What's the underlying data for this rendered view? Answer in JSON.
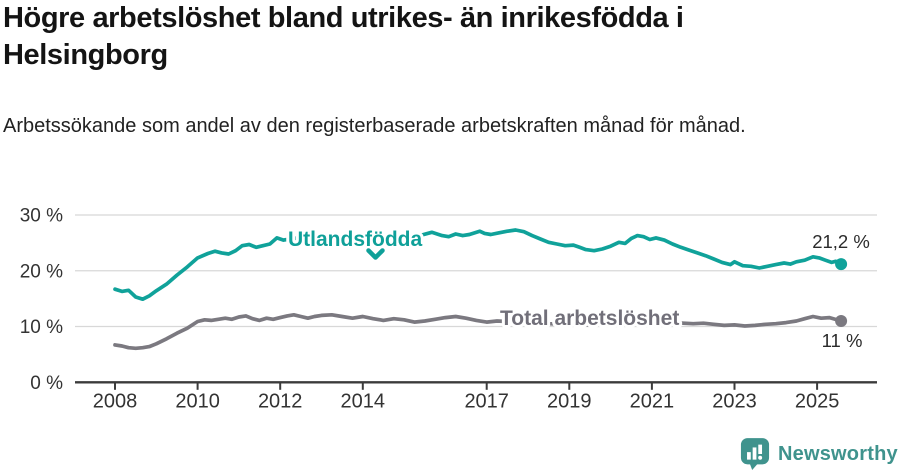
{
  "chart_data": {
    "type": "line",
    "title": "Högre arbetslöshet bland utrikes- än inrikesfödda i Helsingborg",
    "subtitle": "Arbetssökande som andel av den registerbaserade arbetskraften månad för månad.",
    "unit": "%",
    "xlabel": "",
    "ylabel": "",
    "xlim": [
      2007.05,
      2026.4
    ],
    "ylim": [
      0,
      30
    ],
    "grid": true,
    "legend_position": "inline",
    "x_ticks": [
      {
        "label": "2008",
        "year": 2008
      },
      {
        "label": "2010",
        "year": 2010
      },
      {
        "label": "2012",
        "year": 2012
      },
      {
        "label": "2014",
        "year": 2014
      },
      {
        "label": "2017",
        "year": 2017
      },
      {
        "label": "2019",
        "year": 2019
      },
      {
        "label": "2021",
        "year": 2021
      },
      {
        "label": "2023",
        "year": 2023
      },
      {
        "label": "2025",
        "year": 2025
      }
    ],
    "y_ticks": [
      {
        "label": "0 %",
        "value": 0
      },
      {
        "label": "10 %",
        "value": 10
      },
      {
        "label": "20 %",
        "value": 20
      },
      {
        "label": "30 %",
        "value": 30
      }
    ],
    "series": [
      {
        "id": "utlandsfodda",
        "name": "Utlandsfödda",
        "color": "#10a29a",
        "label_color": "#0fa099",
        "end_label": "21,2 %",
        "end_value": 21.2,
        "points": [
          [
            2008.0,
            16.7
          ],
          [
            2008.17,
            16.3
          ],
          [
            2008.33,
            16.5
          ],
          [
            2008.5,
            15.3
          ],
          [
            2008.67,
            14.9
          ],
          [
            2008.83,
            15.5
          ],
          [
            2009.0,
            16.4
          ],
          [
            2009.25,
            17.6
          ],
          [
            2009.5,
            19.2
          ],
          [
            2009.75,
            20.7
          ],
          [
            2010.0,
            22.3
          ],
          [
            2010.25,
            23.1
          ],
          [
            2010.42,
            23.5
          ],
          [
            2010.58,
            23.2
          ],
          [
            2010.75,
            23.0
          ],
          [
            2010.92,
            23.6
          ],
          [
            2011.08,
            24.5
          ],
          [
            2011.25,
            24.7
          ],
          [
            2011.42,
            24.2
          ],
          [
            2011.58,
            24.5
          ],
          [
            2011.75,
            24.8
          ],
          [
            2011.92,
            25.9
          ],
          [
            2012.08,
            25.5
          ],
          [
            2012.25,
            25.7
          ],
          [
            2012.42,
            25.9
          ],
          [
            2012.58,
            25.6
          ],
          [
            2012.75,
            25.8
          ],
          [
            2012.92,
            26.1
          ],
          [
            2013.17,
            25.9
          ],
          [
            2013.42,
            26.1
          ],
          [
            2013.67,
            25.8
          ],
          [
            2013.92,
            25.5
          ],
          [
            2014.17,
            25.0
          ],
          [
            2014.42,
            24.8
          ],
          [
            2014.67,
            25.2
          ],
          [
            2014.92,
            25.6
          ],
          [
            2015.17,
            26.0
          ],
          [
            2015.42,
            26.4
          ],
          [
            2015.67,
            26.9
          ],
          [
            2015.92,
            26.3
          ],
          [
            2016.08,
            26.1
          ],
          [
            2016.25,
            26.6
          ],
          [
            2016.42,
            26.3
          ],
          [
            2016.58,
            26.5
          ],
          [
            2016.83,
            27.1
          ],
          [
            2016.95,
            26.7
          ],
          [
            2017.1,
            26.5
          ],
          [
            2017.3,
            26.8
          ],
          [
            2017.5,
            27.1
          ],
          [
            2017.7,
            27.3
          ],
          [
            2017.9,
            27.0
          ],
          [
            2018.1,
            26.3
          ],
          [
            2018.3,
            25.7
          ],
          [
            2018.5,
            25.1
          ],
          [
            2018.7,
            24.8
          ],
          [
            2018.9,
            24.5
          ],
          [
            2019.1,
            24.6
          ],
          [
            2019.25,
            24.2
          ],
          [
            2019.4,
            23.8
          ],
          [
            2019.6,
            23.6
          ],
          [
            2019.8,
            23.9
          ],
          [
            2020.0,
            24.4
          ],
          [
            2020.2,
            25.1
          ],
          [
            2020.35,
            24.9
          ],
          [
            2020.5,
            25.8
          ],
          [
            2020.65,
            26.3
          ],
          [
            2020.8,
            26.1
          ],
          [
            2020.95,
            25.6
          ],
          [
            2021.1,
            25.9
          ],
          [
            2021.3,
            25.5
          ],
          [
            2021.5,
            24.8
          ],
          [
            2021.7,
            24.2
          ],
          [
            2021.9,
            23.7
          ],
          [
            2022.1,
            23.2
          ],
          [
            2022.3,
            22.7
          ],
          [
            2022.5,
            22.1
          ],
          [
            2022.7,
            21.5
          ],
          [
            2022.9,
            21.1
          ],
          [
            2023.0,
            21.6
          ],
          [
            2023.2,
            20.9
          ],
          [
            2023.4,
            20.8
          ],
          [
            2023.6,
            20.5
          ],
          [
            2023.8,
            20.8
          ],
          [
            2024.0,
            21.1
          ],
          [
            2024.2,
            21.4
          ],
          [
            2024.35,
            21.2
          ],
          [
            2024.5,
            21.6
          ],
          [
            2024.7,
            21.9
          ],
          [
            2024.9,
            22.5
          ],
          [
            2025.05,
            22.3
          ],
          [
            2025.2,
            21.9
          ],
          [
            2025.35,
            21.5
          ],
          [
            2025.45,
            21.7
          ],
          [
            2025.58,
            21.2
          ]
        ]
      },
      {
        "id": "total",
        "name": "Total arbetslöshet",
        "color": "#7b7980",
        "label_color": "#716f79",
        "end_label": "11 %",
        "end_value": 11,
        "points": [
          [
            2008.0,
            6.7
          ],
          [
            2008.17,
            6.5
          ],
          [
            2008.33,
            6.2
          ],
          [
            2008.5,
            6.1
          ],
          [
            2008.67,
            6.2
          ],
          [
            2008.83,
            6.4
          ],
          [
            2009.0,
            6.9
          ],
          [
            2009.25,
            7.8
          ],
          [
            2009.5,
            8.8
          ],
          [
            2009.75,
            9.7
          ],
          [
            2010.0,
            10.9
          ],
          [
            2010.17,
            11.2
          ],
          [
            2010.33,
            11.1
          ],
          [
            2010.5,
            11.3
          ],
          [
            2010.67,
            11.5
          ],
          [
            2010.83,
            11.3
          ],
          [
            2011.0,
            11.7
          ],
          [
            2011.17,
            11.9
          ],
          [
            2011.33,
            11.4
          ],
          [
            2011.5,
            11.1
          ],
          [
            2011.67,
            11.5
          ],
          [
            2011.83,
            11.3
          ],
          [
            2012.0,
            11.6
          ],
          [
            2012.17,
            11.9
          ],
          [
            2012.33,
            12.1
          ],
          [
            2012.5,
            11.8
          ],
          [
            2012.67,
            11.5
          ],
          [
            2012.83,
            11.8
          ],
          [
            2013.0,
            12.0
          ],
          [
            2013.25,
            12.1
          ],
          [
            2013.5,
            11.8
          ],
          [
            2013.75,
            11.5
          ],
          [
            2014.0,
            11.8
          ],
          [
            2014.25,
            11.4
          ],
          [
            2014.5,
            11.1
          ],
          [
            2014.75,
            11.4
          ],
          [
            2015.0,
            11.2
          ],
          [
            2015.25,
            10.8
          ],
          [
            2015.5,
            11.0
          ],
          [
            2015.75,
            11.3
          ],
          [
            2016.0,
            11.6
          ],
          [
            2016.25,
            11.8
          ],
          [
            2016.5,
            11.5
          ],
          [
            2016.75,
            11.1
          ],
          [
            2017.0,
            10.8
          ],
          [
            2017.25,
            11.0
          ],
          [
            2017.5,
            10.9
          ],
          [
            2018.0,
            10.7
          ],
          [
            2018.5,
            10.5
          ],
          [
            2019.0,
            10.4
          ],
          [
            2019.5,
            10.3
          ],
          [
            2020.0,
            10.7
          ],
          [
            2020.5,
            11.3
          ],
          [
            2021.0,
            11.0
          ],
          [
            2021.5,
            10.7
          ],
          [
            2022.0,
            10.5
          ],
          [
            2022.25,
            10.6
          ],
          [
            2022.5,
            10.4
          ],
          [
            2022.75,
            10.2
          ],
          [
            2023.0,
            10.3
          ],
          [
            2023.25,
            10.1
          ],
          [
            2023.5,
            10.2
          ],
          [
            2023.75,
            10.4
          ],
          [
            2024.0,
            10.5
          ],
          [
            2024.25,
            10.7
          ],
          [
            2024.5,
            11.0
          ],
          [
            2024.7,
            11.4
          ],
          [
            2024.9,
            11.8
          ],
          [
            2025.1,
            11.5
          ],
          [
            2025.3,
            11.6
          ],
          [
            2025.58,
            11.0
          ]
        ]
      }
    ]
  },
  "footer": {
    "brand": "Newsworthy",
    "brand_color": "#3f938d",
    "logo_icon": "bar-chart-speech-bubble-icon"
  }
}
